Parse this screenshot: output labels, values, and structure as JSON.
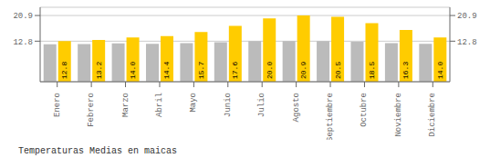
{
  "chart_data": {
    "type": "bar",
    "title": "Temperaturas Medias en maicas",
    "categories": [
      "Enero",
      "Febrero",
      "Marzo",
      "Abril",
      "Mayo",
      "Junio",
      "Julio",
      "Agosto",
      "Septiembre",
      "Octubre",
      "Noviembre",
      "Diciembre"
    ],
    "series": [
      {
        "color": "#BBBBBB",
        "values": [
          11.8,
          11.9,
          12.1,
          12.0,
          12.2,
          12.5,
          12.8,
          12.8,
          12.8,
          12.6,
          12.2,
          12.0
        ]
      },
      {
        "color": "#FFCC00",
        "values": [
          12.8,
          13.2,
          14.0,
          14.4,
          15.7,
          17.6,
          20.0,
          20.9,
          20.5,
          18.5,
          16.3,
          14.0
        ],
        "data_labels": true,
        "value_labels": [
          "12.8",
          "13.2",
          "14.0",
          "14.4",
          "15.7",
          "17.6",
          "20.0",
          "20.9",
          "20.5",
          "18.5",
          "16.3",
          "14.0"
        ]
      }
    ],
    "ylim": [
      0,
      23.5
    ],
    "yticks": [
      12.8,
      20.9
    ],
    "y2lim": [
      0,
      23.5
    ],
    "y2ticks": [
      12.8,
      20.9
    ],
    "grid": true
  }
}
